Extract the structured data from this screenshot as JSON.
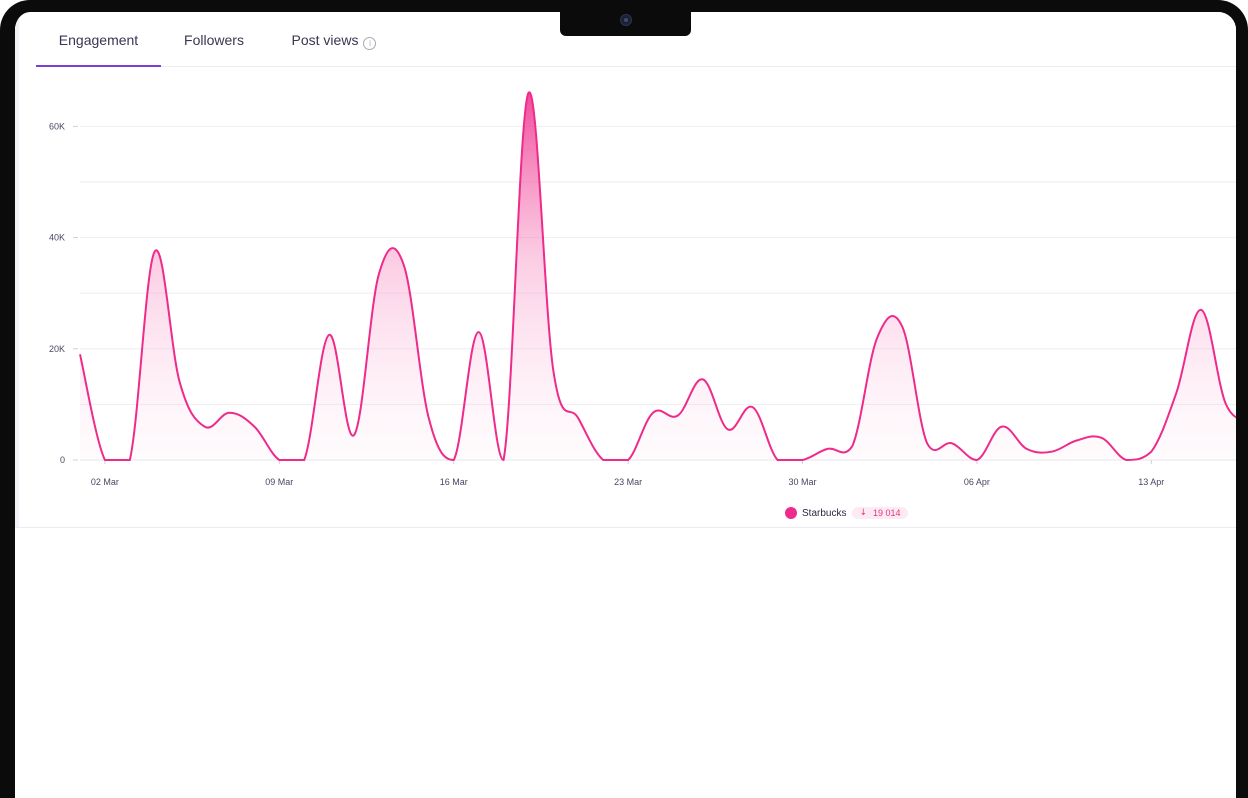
{
  "tabs": [
    {
      "label": "Engagement",
      "active": true
    },
    {
      "label": "Followers",
      "active": false
    },
    {
      "label": "Post views",
      "active": false,
      "info_icon": "info-icon"
    }
  ],
  "colors": {
    "accent_tab": "#7b3fd8",
    "series": "#ee2b8a"
  },
  "chart_data": {
    "type": "area",
    "title": "",
    "xlabel": "",
    "ylabel": "",
    "ylim": [
      0,
      70000
    ],
    "y_ticks": [
      0,
      20000,
      40000,
      60000
    ],
    "y_tick_labels": [
      "0",
      "20K",
      "40K",
      "60K"
    ],
    "x_tick_labels": [
      "02 Mar",
      "09 Mar",
      "16 Mar",
      "23 Mar",
      "30 Mar",
      "06 Apr",
      "13 Apr"
    ],
    "x_tick_days": [
      2,
      9,
      16,
      23,
      30,
      37,
      44
    ],
    "grid": true,
    "legend_position": "bottom-center",
    "series": [
      {
        "name": "Starbucks",
        "change": "19 014",
        "change_direction": "down",
        "points": [
          [
            "01 Mar",
            19000
          ],
          [
            "02 Mar",
            0
          ],
          [
            "03 Mar",
            0
          ],
          [
            "04 Mar",
            37500
          ],
          [
            "05 Mar",
            14000
          ],
          [
            "06 Mar",
            6000
          ],
          [
            "07 Mar",
            8500
          ],
          [
            "08 Mar",
            6000
          ],
          [
            "09 Mar",
            0
          ],
          [
            "10 Mar",
            0
          ],
          [
            "11 Mar",
            22500
          ],
          [
            "12 Mar",
            4500
          ],
          [
            "13 Mar",
            33500
          ],
          [
            "14 Mar",
            35000
          ],
          [
            "15 Mar",
            7500
          ],
          [
            "16 Mar",
            0
          ],
          [
            "17 Mar",
            23000
          ],
          [
            "18 Mar",
            0
          ],
          [
            "19 Mar",
            66000
          ],
          [
            "20 Mar",
            16000
          ],
          [
            "21 Mar",
            7500
          ],
          [
            "22 Mar",
            0
          ],
          [
            "23 Mar",
            0
          ],
          [
            "24 Mar",
            8500
          ],
          [
            "25 Mar",
            8000
          ],
          [
            "26 Mar",
            14500
          ],
          [
            "27 Mar",
            5500
          ],
          [
            "28 Mar",
            9500
          ],
          [
            "29 Mar",
            0
          ],
          [
            "30 Mar",
            0
          ],
          [
            "31 Mar",
            2000
          ],
          [
            "01 Apr",
            2500
          ],
          [
            "02 Apr",
            22000
          ],
          [
            "03 Apr",
            24000
          ],
          [
            "04 Apr",
            3000
          ],
          [
            "05 Apr",
            3000
          ],
          [
            "06 Apr",
            0
          ],
          [
            "07 Apr",
            6000
          ],
          [
            "08 Apr",
            2000
          ],
          [
            "09 Apr",
            1500
          ],
          [
            "10 Apr",
            3500
          ],
          [
            "11 Apr",
            4000
          ],
          [
            "12 Apr",
            0
          ],
          [
            "13 Apr",
            1500
          ],
          [
            "14 Apr",
            12000
          ],
          [
            "15 Apr",
            27000
          ],
          [
            "16 Apr",
            10000
          ],
          [
            "17 Apr",
            7000
          ]
        ]
      }
    ]
  }
}
